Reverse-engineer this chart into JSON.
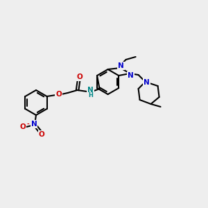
{
  "bg_color": "#eeeeee",
  "bond_color": "#000000",
  "bond_width": 1.5,
  "atom_colors": {
    "O": "#cc0000",
    "N": "#0000cc",
    "N_amide": "#008888",
    "C": "#000000"
  },
  "font_size_atom": 7.5,
  "font_size_small": 6.0
}
